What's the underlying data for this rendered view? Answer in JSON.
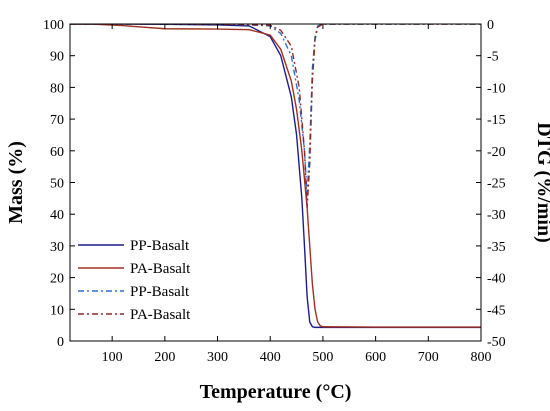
{
  "chart_data": {
    "type": "line",
    "title": "",
    "xlabel": "Temperature (°C)",
    "ylabel_left": "Mass (%)",
    "ylabel_right": "DTG (%/min)",
    "xlim": [
      20,
      800
    ],
    "ylim_left": [
      0,
      100
    ],
    "ylim_right": [
      -50,
      0
    ],
    "x_ticks": [
      100,
      200,
      300,
      400,
      500,
      600,
      700,
      800
    ],
    "y_left_ticks": [
      0,
      10,
      20,
      30,
      40,
      50,
      60,
      70,
      80,
      90,
      100
    ],
    "y_right_ticks": [
      0,
      -5,
      -10,
      -15,
      -20,
      -25,
      -30,
      -35,
      -40,
      -45,
      -50
    ],
    "grid": false,
    "legend_position": "bottom-left",
    "series": [
      {
        "name": "PP-Basalt",
        "axis": "left",
        "color": "#1c1c8c",
        "dash": "solid",
        "x": [
          20,
          100,
          200,
          300,
          360,
          400,
          420,
          440,
          450,
          460,
          465,
          470,
          475,
          480,
          485,
          490,
          500,
          600,
          700,
          800
        ],
        "y": [
          100,
          100,
          99.9,
          99.7,
          99.4,
          96,
          90,
          77,
          65,
          45,
          30,
          14,
          6,
          4.5,
          4.3,
          4.3,
          4.3,
          4.3,
          4.3,
          4.3
        ]
      },
      {
        "name": "PA-Basalt",
        "axis": "left",
        "color": "#a03020",
        "dash": "solid",
        "x": [
          20,
          60,
          120,
          160,
          200,
          300,
          360,
          400,
          420,
          440,
          450,
          460,
          470,
          475,
          480,
          485,
          490,
          495,
          500,
          600,
          700,
          800
        ],
        "y": [
          100,
          100,
          99.5,
          99,
          98.5,
          98.4,
          98.2,
          96.5,
          92,
          82,
          73,
          60,
          42,
          30,
          18,
          10,
          6,
          4.8,
          4.5,
          4.4,
          4.4,
          4.4
        ]
      },
      {
        "name": "PP-Basalt",
        "axis": "right",
        "color": "#2f6fd0",
        "dash": "6 3 2 3",
        "x": [
          20,
          200,
          350,
          400,
          420,
          440,
          455,
          465,
          470,
          475,
          480,
          485,
          490,
          500,
          600,
          700,
          800
        ],
        "y": [
          0,
          0,
          -0.1,
          -0.3,
          -1.5,
          -5,
          -12,
          -20,
          -27,
          -19,
          -7,
          -2,
          -0.3,
          0,
          0,
          0,
          0
        ]
      },
      {
        "name": "PA-Basalt",
        "axis": "right",
        "color": "#8b2a2a",
        "dash": "6 3 2 3",
        "x": [
          20,
          200,
          350,
          400,
          420,
          440,
          455,
          465,
          470,
          475,
          480,
          485,
          490,
          500,
          600,
          700,
          800
        ],
        "y": [
          0,
          0,
          -0.1,
          -0.2,
          -1,
          -3.5,
          -10,
          -20,
          -29,
          -22,
          -9,
          -2.5,
          -0.5,
          0,
          0,
          0,
          0
        ]
      }
    ]
  }
}
